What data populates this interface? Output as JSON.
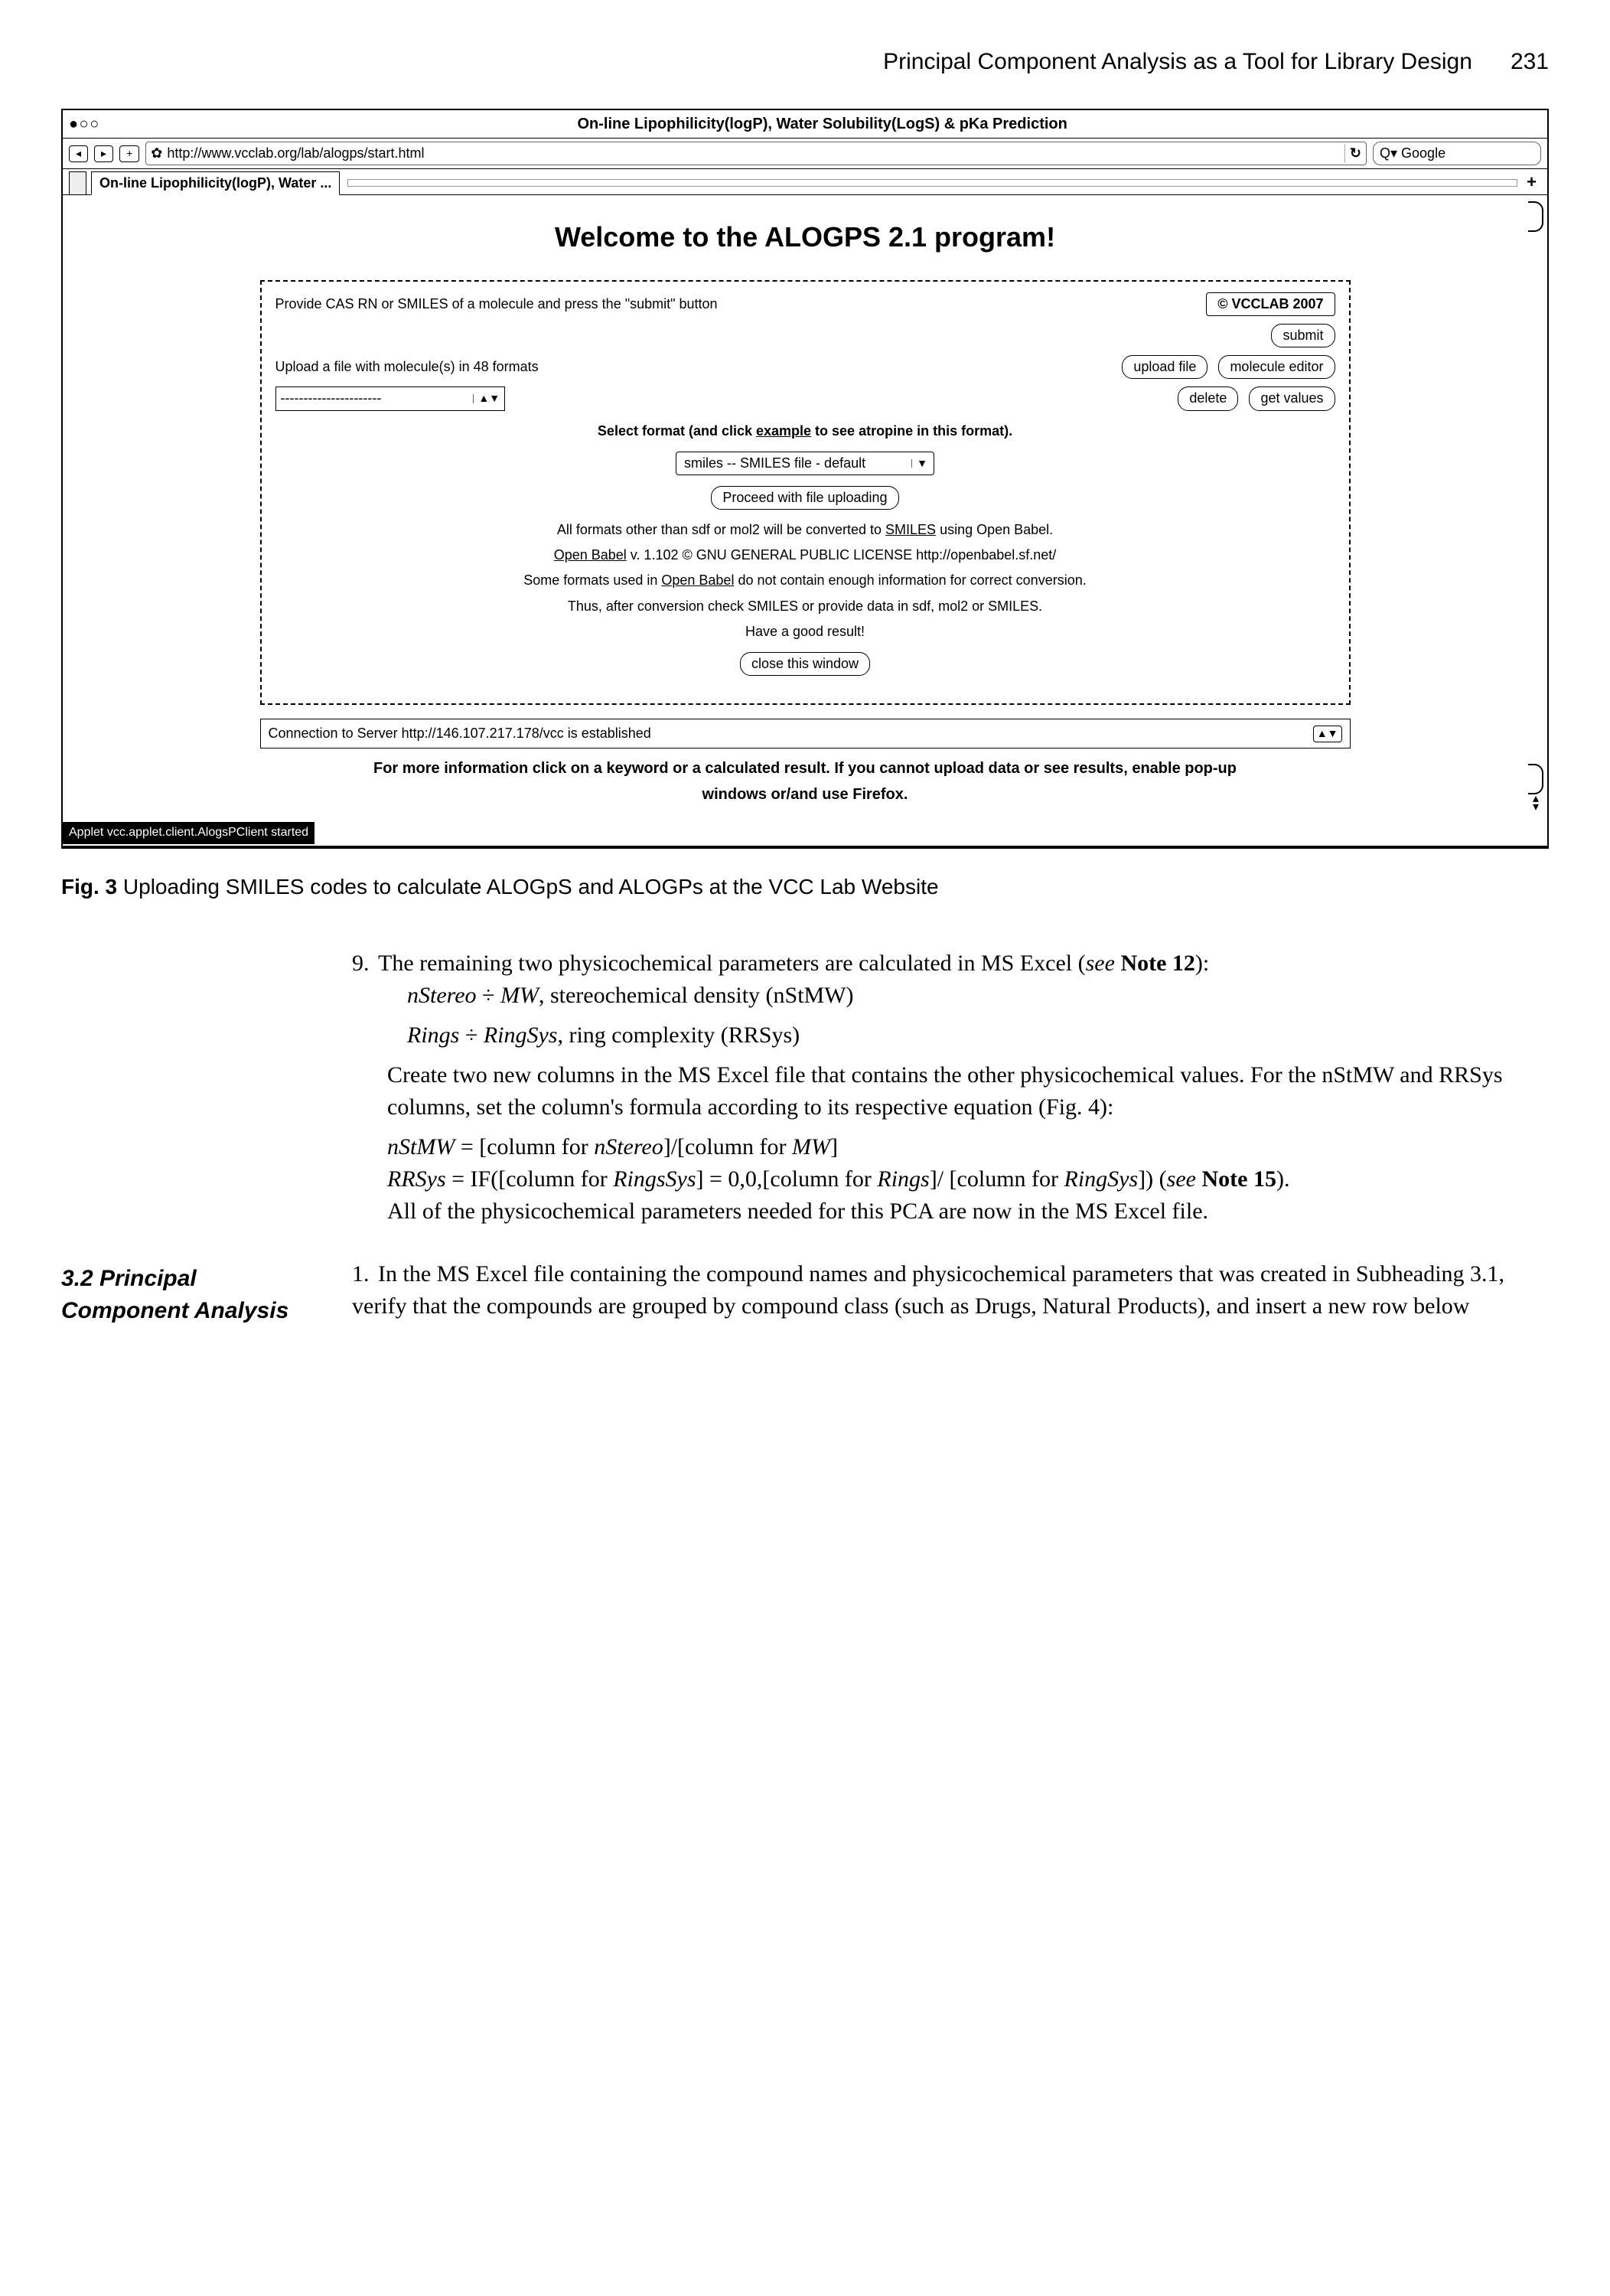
{
  "page_header": {
    "running_title": "Principal Component Analysis as a Tool for Library Design",
    "page_number": "231"
  },
  "browser": {
    "window_title": "On-line Lipophilicity(logP), Water Solubility(LogS) & pKa Prediction",
    "traffic_glyph": "● ○ ○",
    "nav_back": "◂",
    "nav_fwd": "▸",
    "add_btn": "+",
    "favicon_glyph": "✿",
    "url": "http://www.vcclab.org/lab/alogps/start.html",
    "reload_glyph": "↻",
    "search_placeholder": "Q▾ Google",
    "tab_label": "On-line Lipophilicity(logP), Water ...",
    "tab_plus": "+",
    "main_heading": "Welcome to the ALOGPS 2.1 program!",
    "panel1": {
      "row1_text": "Provide CAS RN or SMILES of a molecule and press the \"submit\" button",
      "row1_btn_right": "© VCCLAB 2007",
      "btn_submit": "submit",
      "row2_text": "Upload a file with molecule(s) in 48 formats",
      "btn_upload": "upload file",
      "btn_editor": "molecule editor",
      "dashed_placeholder": "----------------------",
      "btn_delete": "delete",
      "btn_getvalues": "get values",
      "select_toggle": "▲▼",
      "format_hint_pre": "Select format (and click ",
      "format_hint_link": "example",
      "format_hint_post": " to see atropine in this format).",
      "format_select": "smiles -- SMILES file - default",
      "format_select_toggle": "▼",
      "btn_proceed": "Proceed with file uploading",
      "info1_pre": "All formats other than sdf or mol2 will be converted to ",
      "info1_link": "SMILES",
      "info1_post": " using Open Babel.",
      "info2_pre": "Open Babel",
      "info2_post": " v. 1.102 © GNU GENERAL PUBLIC LICENSE http://openbabel.sf.net/",
      "info3_pre": "Some formats used in ",
      "info3_link": "Open Babel",
      "info3_post": " do not contain enough information for correct conversion.",
      "info4": "Thus, after conversion check SMILES or provide data in sdf, mol2 or SMILES.",
      "good_result": "Have a good result!",
      "btn_close": "close this window"
    },
    "status_text": "Connection to Server http://146.107.217.178/vcc is established",
    "status_toggle": "▲▼",
    "footer_line1": "For more information click on a keyword or a calculated result. If you cannot upload data or see results, enable pop-up",
    "footer_line2": "windows or/and use Firefox.",
    "status_strip": "Applet vcc.applet.client.AlogsPClient started"
  },
  "caption": {
    "label": "Fig. 3",
    "text": " Uploading SMILES codes to calculate ALOGpS and ALOGPs at the VCC Lab Website"
  },
  "step9": {
    "num": "9.",
    "lead": "The remaining two physicochemical parameters are calculated in MS Excel (",
    "see": "see",
    "note": " Note 12",
    "lead_end": "):",
    "f1a": "nStereo",
    "f1b": " ÷ ",
    "f1c": "MW",
    "f1d": ", stereochemical density (nStMW)",
    "f2a": "Rings",
    "f2b": " ÷ ",
    "f2c": "RingSys",
    "f2d": ", ring complexity (RRSys)",
    "p2": "Create two new columns in the MS Excel file that contains the other physicochemical values. For the nStMW and RRSys columns, set the column's formula according to its respective equation (Fig. 4):",
    "eq1a": "nStMW",
    "eq1b": " = [column for ",
    "eq1c": "nStereo",
    "eq1d": "]/[column for ",
    "eq1e": "MW",
    "eq1f": "]",
    "eq2a": "RRSys",
    "eq2b": " = IF([column for ",
    "eq2c": "RingsSys",
    "eq2d": "] = 0,0,[column for ",
    "eq2e": "Rings",
    "eq2f": "]/ [column for ",
    "eq2g": "RingSys",
    "eq2h": "]) (",
    "eq2see": "see",
    "eq2note": " Note 15",
    "eq2end": ").",
    "p3": "All of the physicochemical parameters needed for this PCA are now in the MS Excel file."
  },
  "section32": {
    "heading": "3.2   Principal Component Analysis",
    "num": "1.",
    "text": "In the MS Excel file containing the compound names and physicochemical parameters that was created in Subheading 3.1, verify that the compounds are grouped by compound class (such as Drugs, Natural Products), and insert a new row below"
  }
}
